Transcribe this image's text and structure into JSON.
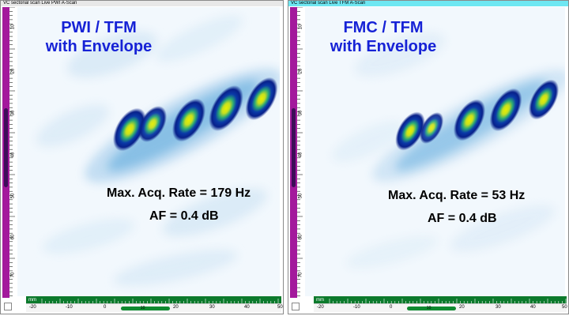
{
  "panels": [
    {
      "window_title": "VC sectorial scan Live PWI A-Scan",
      "heading_line1": "PWI / TFM",
      "heading_line2": "with Envelope",
      "acq_rate": "Max. Acq. Rate = 179 Hz",
      "af": "AF = 0.4 dB",
      "ruler_unit": "mm",
      "vertical_ticks": [
        "0",
        "10",
        "20",
        "30",
        "40",
        "50",
        "60",
        "70"
      ],
      "horizontal_ticks": [
        "-20",
        "-10",
        "0",
        "10",
        "20",
        "30",
        "40",
        "50"
      ],
      "scroll_label": "10"
    },
    {
      "window_title": "VC sectorial scan Live TFM A-Scan",
      "heading_line1": "FMC / TFM",
      "heading_line2": "with Envelope",
      "acq_rate": "Max. Acq. Rate = 53 Hz",
      "af": "AF = 0.4 dB",
      "ruler_unit": "mm",
      "vertical_ticks": [
        "0",
        "10",
        "20",
        "30",
        "40",
        "50",
        "60",
        "70"
      ],
      "horizontal_ticks": [
        "-20",
        "-10",
        "0",
        "10",
        "20",
        "30",
        "40",
        "50"
      ],
      "scroll_label": "10"
    }
  ],
  "colors": {
    "heading": "#1622d6",
    "ruler_purple": "#a3199c",
    "ruler_green": "#0c7a2c",
    "right_titlebar": "#6ee7f2"
  }
}
